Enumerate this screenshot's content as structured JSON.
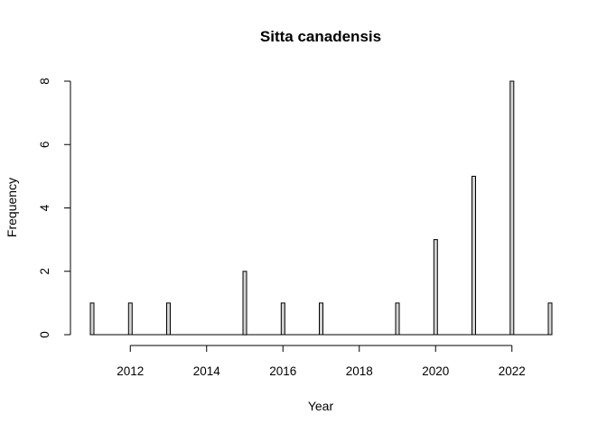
{
  "chart_data": {
    "type": "bar",
    "title": "Sitta canadensis",
    "xlabel": "Year",
    "ylabel": "Frequency",
    "x": [
      2011,
      2012,
      2013,
      2014,
      2015,
      2016,
      2017,
      2018,
      2019,
      2020,
      2021,
      2022,
      2023
    ],
    "values": [
      1,
      1,
      1,
      0,
      2,
      1,
      1,
      0,
      1,
      3,
      5,
      8,
      1
    ],
    "xlim": [
      2011,
      2023
    ],
    "ylim": [
      0,
      8
    ],
    "x_ticks": [
      "2012",
      "2014",
      "2016",
      "2018",
      "2020",
      "2022"
    ],
    "y_ticks": [
      "0",
      "2",
      "4",
      "6",
      "8"
    ],
    "bar_fill": "#d3d3d3",
    "bar_stroke": "#000000",
    "grid": false
  }
}
